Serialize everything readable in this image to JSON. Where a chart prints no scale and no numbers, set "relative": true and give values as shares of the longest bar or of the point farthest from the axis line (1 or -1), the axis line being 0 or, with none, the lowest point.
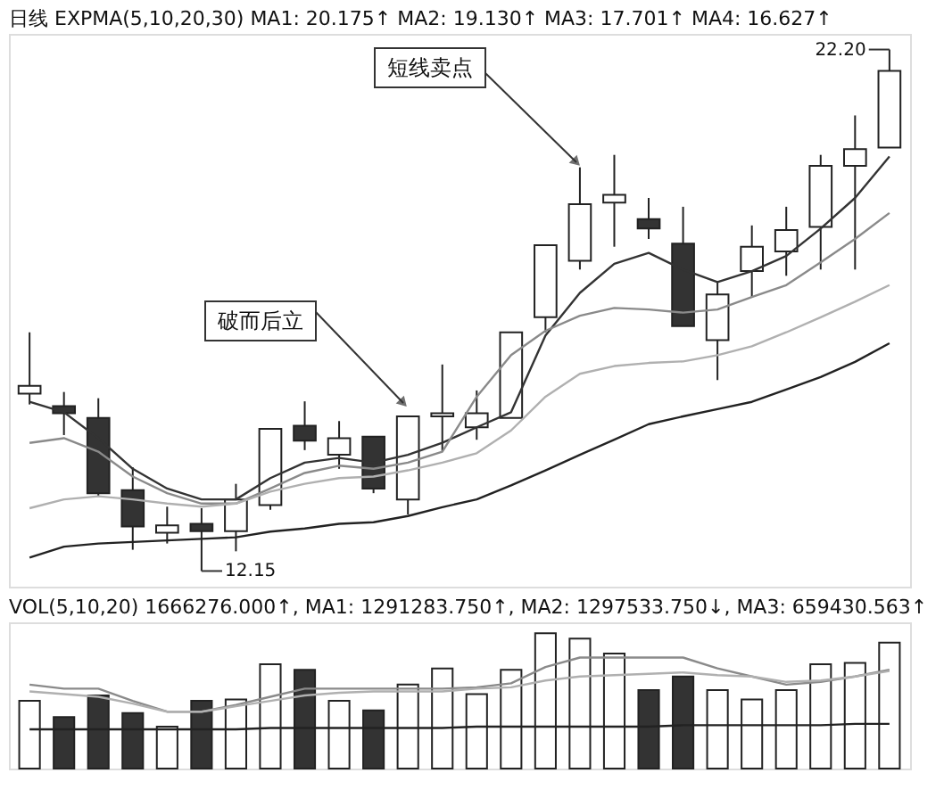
{
  "chart_data": [
    {
      "type": "candlestick",
      "title": "日线 EXPMA(5,10,20,30) MA1: 20.175↑ MA2: 19.130↑ MA3: 17.701↑ MA4: 16.627↑",
      "tick_labels": false,
      "categories": [
        null,
        null,
        null,
        null,
        null,
        null,
        null,
        null,
        null,
        null,
        null,
        null,
        null,
        null,
        null,
        null,
        null,
        null,
        null,
        null,
        null,
        null,
        null,
        null,
        null,
        null
      ],
      "ohlc": [
        [
          15.57,
          16.75,
          15.36,
          15.72
        ],
        [
          15.33,
          15.6,
          14.77,
          15.19
        ],
        [
          15.1,
          15.48,
          13.6,
          13.65
        ],
        [
          13.71,
          14.15,
          12.56,
          13.01
        ],
        [
          12.89,
          13.39,
          12.68,
          13.03
        ],
        [
          13.06,
          13.36,
          12.15,
          12.92
        ],
        [
          12.92,
          13.83,
          12.53,
          13.53
        ],
        [
          13.42,
          14.89,
          13.33,
          14.89
        ],
        [
          14.95,
          15.42,
          14.48,
          14.66
        ],
        [
          14.39,
          15.04,
          14.12,
          14.71
        ],
        [
          14.74,
          14.74,
          13.65,
          13.74
        ],
        [
          13.53,
          15.13,
          13.24,
          15.13
        ],
        [
          15.13,
          16.13,
          14.45,
          15.19
        ],
        [
          14.92,
          15.63,
          14.68,
          15.19
        ],
        [
          15.1,
          16.75,
          15.1,
          16.75
        ],
        [
          17.04,
          18.43,
          16.75,
          18.43
        ],
        [
          18.13,
          19.93,
          17.96,
          19.22
        ],
        [
          19.25,
          20.17,
          18.4,
          19.4
        ],
        [
          18.93,
          19.34,
          18.55,
          18.75
        ],
        [
          18.46,
          19.17,
          16.87,
          16.87
        ],
        [
          16.6,
          17.72,
          15.83,
          17.48
        ],
        [
          17.93,
          18.81,
          17.43,
          18.4
        ],
        [
          18.31,
          19.17,
          17.84,
          18.72
        ],
        [
          18.78,
          20.17,
          17.96,
          19.96
        ],
        [
          19.96,
          20.93,
          17.96,
          20.28
        ],
        [
          20.31,
          22.2,
          20.31,
          21.79
        ]
      ],
      "colors": [
        "#ffffff",
        "#333333",
        "#333333",
        "#333333",
        "#ffffff",
        "#333333",
        "#ffffff",
        "#ffffff",
        "#333333",
        "#ffffff",
        "#333333",
        "#ffffff",
        "#ffffff",
        "#ffffff",
        "#ffffff",
        "#ffffff",
        "#ffffff",
        "#ffffff",
        "#333333",
        "#333333",
        "#ffffff",
        "#ffffff",
        "#ffffff",
        "#ffffff",
        "#ffffff",
        "#ffffff"
      ],
      "series": [
        {
          "type": "line",
          "color": "#333333",
          "values": [
            15.41,
            15.21,
            14.71,
            14.12,
            13.74,
            13.53,
            13.53,
            13.94,
            14.24,
            14.33,
            14.24,
            14.39,
            14.62,
            14.92,
            15.21,
            16.69,
            17.51,
            18.07,
            18.28,
            17.96,
            17.72,
            17.93,
            18.22,
            18.75,
            19.34,
            20.14
          ]
        },
        {
          "type": "line",
          "color": "#8a8a8a",
          "values": [
            14.62,
            14.71,
            14.45,
            13.97,
            13.65,
            13.45,
            13.45,
            13.74,
            14.04,
            14.18,
            14.12,
            14.24,
            14.45,
            15.51,
            16.31,
            16.78,
            17.07,
            17.22,
            17.19,
            17.13,
            17.19,
            17.43,
            17.66,
            18.1,
            18.55,
            19.05
          ]
        },
        {
          "type": "line",
          "color": "#b0b0b0",
          "values": [
            13.36,
            13.53,
            13.59,
            13.53,
            13.45,
            13.39,
            13.45,
            13.68,
            13.83,
            13.94,
            13.97,
            14.09,
            14.24,
            14.42,
            14.86,
            15.51,
            15.95,
            16.1,
            16.16,
            16.19,
            16.31,
            16.48,
            16.75,
            17.04,
            17.34,
            17.66
          ]
        },
        {
          "type": "line",
          "color": "#222222",
          "values": [
            12.41,
            12.62,
            12.68,
            12.71,
            12.74,
            12.77,
            12.8,
            12.91,
            12.97,
            13.06,
            13.09,
            13.21,
            13.38,
            13.53,
            13.8,
            14.09,
            14.39,
            14.68,
            14.98,
            15.13,
            15.27,
            15.41,
            15.65,
            15.89,
            16.18,
            16.54
          ]
        }
      ],
      "annotations": [
        "22.20",
        "12.15",
        "短线卖点",
        "破而后立"
      ]
    },
    {
      "type": "bar",
      "relative": true,
      "title": "VOL(5,10,20) 1666276.000↑, MA1: 1291283.750↑, MA2: 1297533.750↓, MA3: 659430.563↑",
      "tick_labels": false,
      "categories": [
        null,
        null,
        null,
        null,
        null,
        null,
        null,
        null,
        null,
        null,
        null,
        null,
        null,
        null,
        null,
        null,
        null,
        null,
        null,
        null,
        null,
        null,
        null,
        null,
        null,
        null
      ],
      "values": [
        0.5,
        0.38,
        0.54,
        0.41,
        0.31,
        0.5,
        0.51,
        0.77,
        0.73,
        0.5,
        0.43,
        0.62,
        0.74,
        0.55,
        0.73,
        1,
        0.96,
        0.85,
        0.58,
        0.68,
        0.58,
        0.51,
        0.58,
        0.77,
        0.78,
        0.93
      ],
      "colors": [
        "#ffffff",
        "#333333",
        "#333333",
        "#333333",
        "#ffffff",
        "#333333",
        "#ffffff",
        "#ffffff",
        "#333333",
        "#ffffff",
        "#333333",
        "#ffffff",
        "#ffffff",
        "#ffffff",
        "#ffffff",
        "#ffffff",
        "#ffffff",
        "#ffffff",
        "#333333",
        "#333333",
        "#ffffff",
        "#ffffff",
        "#ffffff",
        "#ffffff",
        "#ffffff",
        "#ffffff"
      ],
      "series": [
        {
          "type": "line",
          "color": "#8a8a8a",
          "values": [
            0.62,
            0.59,
            0.59,
            0.5,
            0.42,
            0.42,
            0.47,
            0.53,
            0.59,
            0.59,
            0.59,
            0.59,
            0.59,
            0.6,
            0.63,
            0.75,
            0.82,
            0.82,
            0.82,
            0.82,
            0.74,
            0.68,
            0.62,
            0.64,
            0.68,
            0.73
          ]
        },
        {
          "type": "line",
          "color": "#b0b0b0",
          "values": [
            0.57,
            0.55,
            0.53,
            0.48,
            0.42,
            0.42,
            0.46,
            0.5,
            0.54,
            0.56,
            0.57,
            0.57,
            0.57,
            0.59,
            0.6,
            0.65,
            0.68,
            0.69,
            0.7,
            0.71,
            0.69,
            0.68,
            0.64,
            0.65,
            0.68,
            0.72
          ]
        },
        {
          "type": "line",
          "color": "#222222",
          "values": [
            0.29,
            0.29,
            0.29,
            0.29,
            0.29,
            0.29,
            0.29,
            0.3,
            0.3,
            0.3,
            0.3,
            0.3,
            0.3,
            0.31,
            0.31,
            0.31,
            0.31,
            0.31,
            0.31,
            0.32,
            0.32,
            0.32,
            0.32,
            0.32,
            0.33,
            0.33
          ]
        }
      ]
    }
  ]
}
